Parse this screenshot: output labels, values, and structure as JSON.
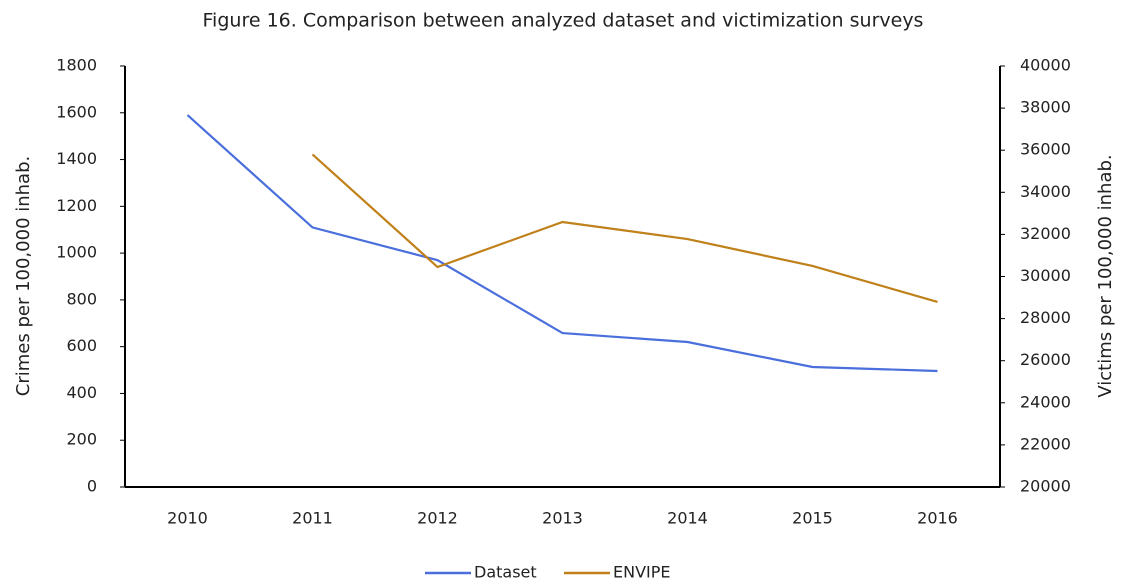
{
  "chart_data": {
    "type": "line",
    "title": "Figure 16. Comparison between analyzed dataset and victimization surveys",
    "y_label": "Crimes per 100,000 inhab.",
    "y2_label": "Victims per 100,000 inhab.",
    "categories": [
      "2010",
      "2011",
      "2012",
      "2013",
      "2014",
      "2015",
      "2016"
    ],
    "series": [
      {
        "name": "Dataset",
        "color": "#4a6fdc",
        "values": [
          1590,
          1110,
          970,
          658,
          620,
          513,
          496
        ]
      },
      {
        "name": "ENVIPE",
        "color": "#c0801a",
        "axis": "y2",
        "values": [
          null,
          35800,
          30450,
          32590,
          31780,
          30500,
          28790
        ]
      }
    ],
    "ylim": [
      0,
      1800
    ],
    "yticks": [
      0,
      200,
      400,
      600,
      800,
      1000,
      1200,
      1400,
      1600,
      1800
    ],
    "y2lim": [
      20000,
      40000
    ],
    "y2ticks": [
      20000,
      22000,
      24000,
      26000,
      28000,
      30000,
      32000,
      34000,
      36000,
      38000,
      40000
    ],
    "legend": "bottom",
    "grid": false
  }
}
